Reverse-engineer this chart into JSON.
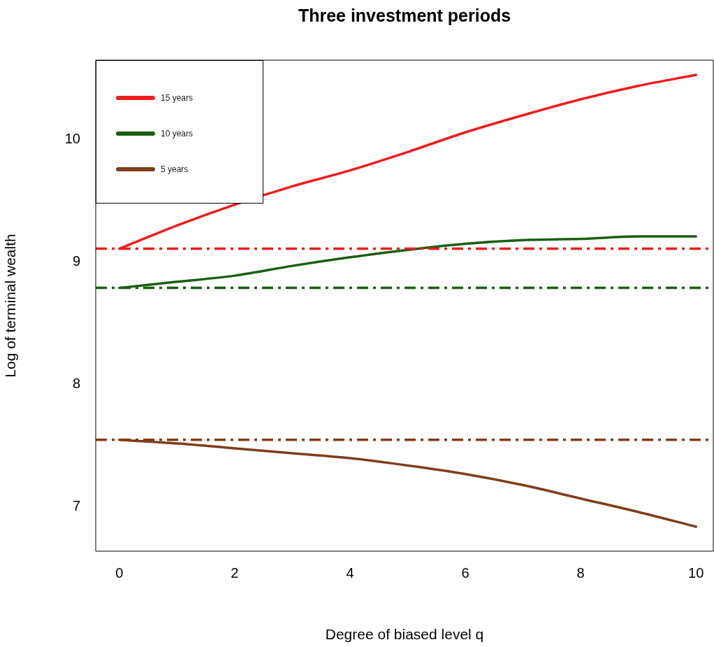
{
  "chart_data": {
    "type": "line",
    "title": "Three investment periods",
    "xlabel": "Degree of biased level q",
    "ylabel": "Log of terminal wealth",
    "x": [
      0,
      1,
      2,
      3,
      4,
      5,
      6,
      7,
      8,
      9,
      10
    ],
    "series": [
      {
        "name": "15 years",
        "color": "#ee1c1c",
        "values": [
          9.11,
          9.3,
          9.47,
          9.62,
          9.75,
          9.9,
          10.06,
          10.2,
          10.33,
          10.44,
          10.53
        ]
      },
      {
        "name": "10 years",
        "color": "#1a5e12",
        "values": [
          8.79,
          8.84,
          8.89,
          8.97,
          9.04,
          9.1,
          9.15,
          9.18,
          9.19,
          9.21,
          9.21
        ]
      },
      {
        "name": "5 years",
        "color": "#7f3d1b",
        "values": [
          7.55,
          7.52,
          7.48,
          7.44,
          7.4,
          7.34,
          7.27,
          7.18,
          7.07,
          6.96,
          6.84
        ]
      }
    ],
    "ref_lines": [
      {
        "axis": "y",
        "value": 9.11,
        "color": "#ee1c1c",
        "line_style": "dashdot"
      },
      {
        "axis": "y",
        "value": 8.79,
        "color": "#1a5e12",
        "line_style": "dashdot"
      },
      {
        "axis": "y",
        "value": 7.55,
        "color": "#7f3d1b",
        "line_style": "dashdot"
      }
    ],
    "xlim": [
      -0.41,
      10.3
    ],
    "ylim": [
      6.64,
      10.65
    ],
    "xticks": [
      0,
      2,
      4,
      6,
      8,
      10
    ],
    "yticks": [
      7,
      8,
      9,
      10
    ],
    "legend": "top left",
    "grid": false,
    "marker": "none",
    "line_style": "solid"
  }
}
